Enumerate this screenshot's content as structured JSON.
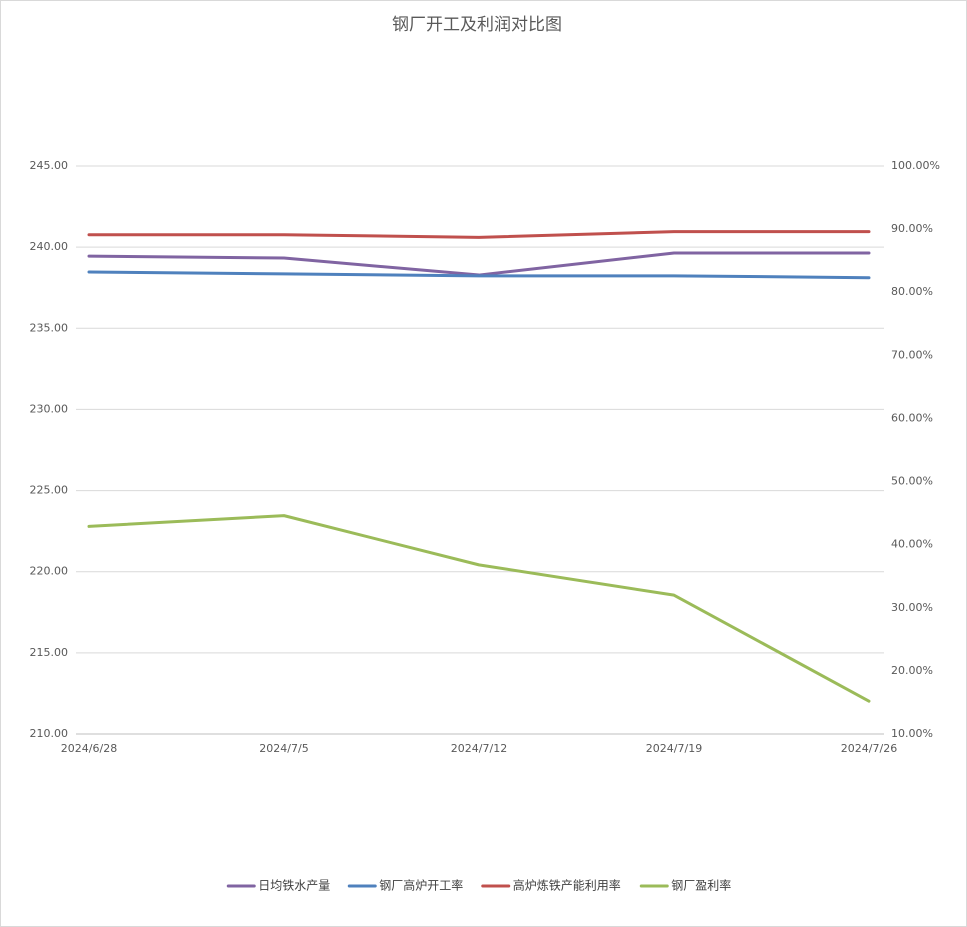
{
  "chart_data": {
    "type": "line",
    "title": "钢厂开工及利润对比图",
    "categories": [
      "2024/6/28",
      "2024/7/5",
      "2024/7/12",
      "2024/7/19",
      "2024/7/26"
    ],
    "series": [
      {
        "name": "日均铁水产量",
        "color": "#8064a2",
        "values": [
          239.45,
          239.33,
          238.28,
          239.64,
          239.64
        ]
      },
      {
        "name": "钢厂高炉开工率",
        "color": "#4f81bd",
        "axis": "y2",
        "values": [
          83.2,
          82.9,
          82.6,
          82.6,
          82.3
        ]
      },
      {
        "name": "高炉炼铁产能利用率",
        "color": "#c0504d",
        "axis": "y2",
        "values": [
          89.1,
          89.1,
          88.7,
          89.6,
          89.6
        ]
      },
      {
        "name": "钢厂盈利率",
        "color": "#9bbb59",
        "axis": "y2",
        "values": [
          42.9,
          44.6,
          36.8,
          32.0,
          15.2
        ]
      }
    ],
    "ylim": [
      210,
      245
    ],
    "yticks": [
      {
        "value": 210,
        "label": "210.00"
      },
      {
        "value": 215,
        "label": "215.00"
      },
      {
        "value": 220,
        "label": "220.00"
      },
      {
        "value": 225,
        "label": "225.00"
      },
      {
        "value": 230,
        "label": "230.00"
      },
      {
        "value": 235,
        "label": "235.00"
      },
      {
        "value": 240,
        "label": "240.00"
      },
      {
        "value": 245,
        "label": "245.00"
      }
    ],
    "y2lim": [
      10,
      100
    ],
    "y2ticks": [
      {
        "value": 10,
        "label": "10.00%"
      },
      {
        "value": 20,
        "label": "20.00%"
      },
      {
        "value": 30,
        "label": "30.00%"
      },
      {
        "value": 40,
        "label": "40.00%"
      },
      {
        "value": 50,
        "label": "50.00%"
      },
      {
        "value": 60,
        "label": "60.00%"
      },
      {
        "value": 70,
        "label": "70.00%"
      },
      {
        "value": 80,
        "label": "80.00%"
      },
      {
        "value": 90,
        "label": "90.00%"
      },
      {
        "value": 100,
        "label": "100.00%"
      }
    ],
    "grid": true,
    "legend": "bottom"
  }
}
